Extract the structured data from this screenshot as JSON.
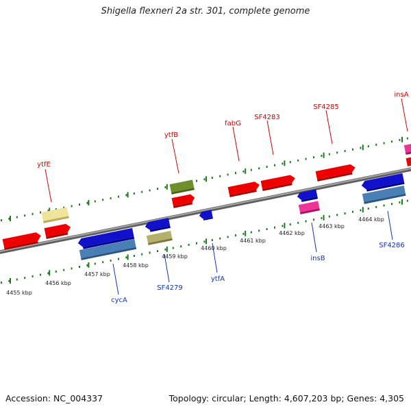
{
  "title": "Shigella flexneri 2a str. 301, complete genome",
  "footer": {
    "accession": "Accession: NC_004337",
    "summary": "Topology: circular; Length: 4,607,203 bp; Genes: 4,305"
  },
  "colors": {
    "forward_gene": "#ee0000",
    "reverse_gene": "#1111cc",
    "forward_label": "#cc0000",
    "reverse_label": "#1133bb",
    "ruler_tick": "#1a7a1a",
    "backbone": "#8a8a8a"
  },
  "scale": {
    "unit": "kbp",
    "labels": [
      "4455 kbp",
      "4456 kbp",
      "4457 kbp",
      "4458 kbp",
      "4459 kbp",
      "4460 kbp",
      "4461 kbp",
      "4462 kbp",
      "4463 kbp",
      "4464 kbp"
    ]
  },
  "forward_strand_labels": [
    "ytfE",
    "ytfB",
    "fabG",
    "SF4283",
    "SF4285",
    "insA"
  ],
  "reverse_strand_labels": [
    "cycA",
    "SF4279",
    "ytfA",
    "insB",
    "SF4286"
  ]
}
